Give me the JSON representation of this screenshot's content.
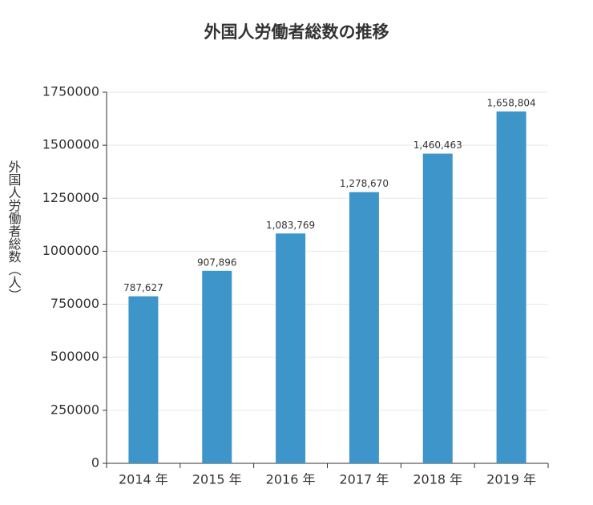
{
  "chart_data": {
    "type": "bar",
    "title": "外国人労働者総数の推移",
    "y_label": "外国人労働者総数（人）",
    "categories": [
      "2014 年",
      "2015 年",
      "2016 年",
      "2017 年",
      "2018 年",
      "2019 年"
    ],
    "values": [
      787627,
      907896,
      1083769,
      1278670,
      1460463,
      1658804
    ],
    "value_labels": [
      "787,627",
      "907,896",
      "1,083,769",
      "1,278,670",
      "1,460,463",
      "1,658,804"
    ],
    "color": "#3d95c9",
    "ylim": [
      0,
      1750000
    ],
    "yticks": [
      0,
      250000,
      500000,
      750000,
      1000000,
      1250000,
      1500000,
      1750000
    ],
    "grid": true
  }
}
